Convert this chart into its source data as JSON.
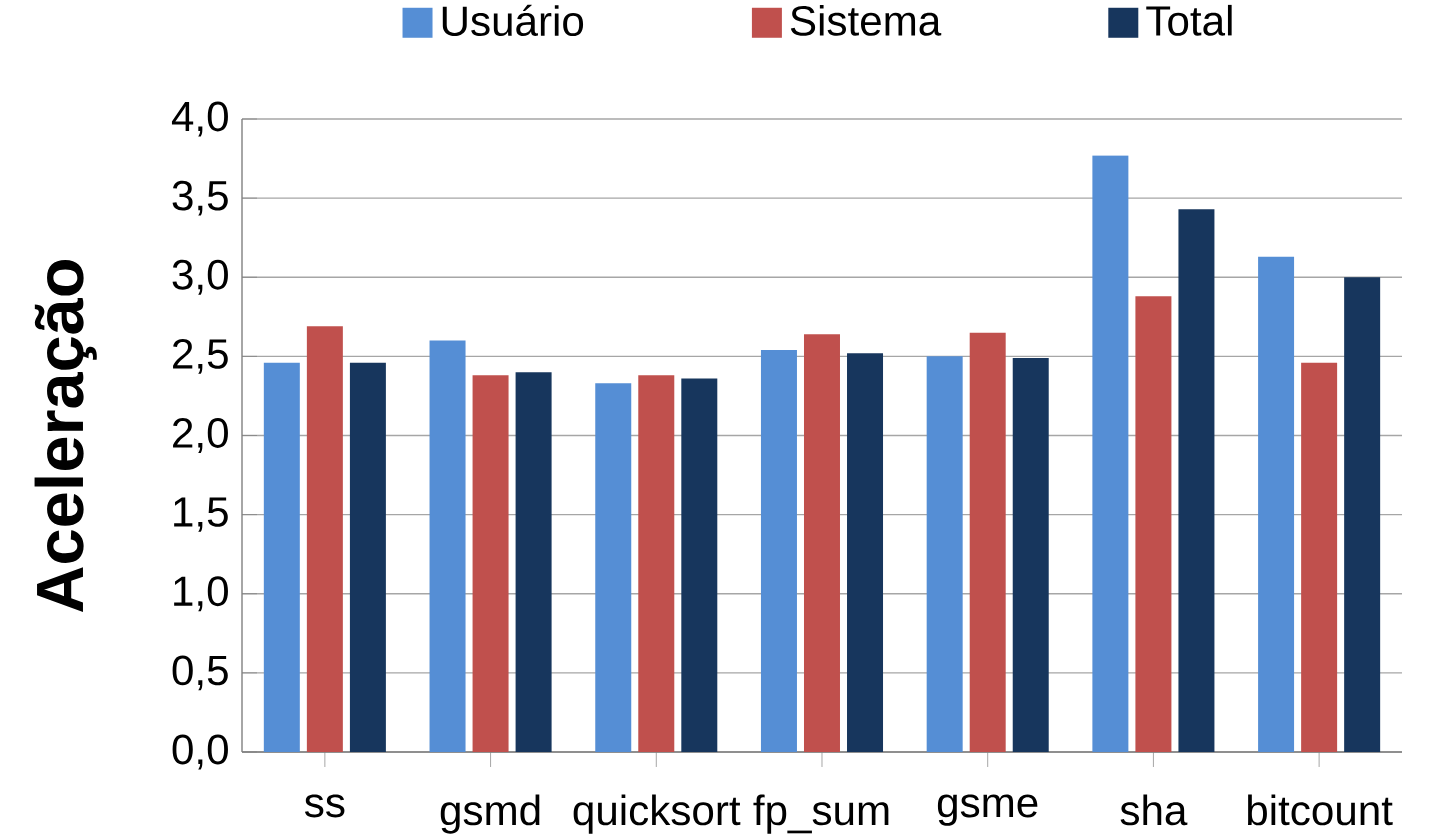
{
  "chart_data": {
    "type": "bar",
    "ylabel": "Aceleração",
    "categories": [
      "ss",
      "gsmd",
      "quicksort",
      "fp_sum",
      "gsme",
      "sha",
      "bitcount"
    ],
    "series": [
      {
        "name": "Usuário",
        "color": "#558ed5",
        "values": [
          2.46,
          2.6,
          2.33,
          2.54,
          2.5,
          3.77,
          3.13
        ]
      },
      {
        "name": "Sistema",
        "color": "#c0504d",
        "values": [
          2.69,
          2.38,
          2.38,
          2.64,
          2.65,
          2.88,
          2.46
        ]
      },
      {
        "name": "Total",
        "color": "#17365d",
        "values": [
          2.46,
          2.4,
          2.36,
          2.52,
          2.49,
          3.43,
          3.0
        ]
      }
    ],
    "ylim": [
      0,
      4
    ],
    "yticks": [
      {
        "value": 0,
        "label": "0,0"
      },
      {
        "value": 0.5,
        "label": "0,5"
      },
      {
        "value": 1,
        "label": "1,0"
      },
      {
        "value": 1.5,
        "label": "1,5"
      },
      {
        "value": 2,
        "label": "2,0"
      },
      {
        "value": 2.5,
        "label": "2,5"
      },
      {
        "value": 3,
        "label": "3,0"
      },
      {
        "value": 3.5,
        "label": "3,5"
      },
      {
        "value": 4,
        "label": "4,0"
      }
    ],
    "grid": "y",
    "legend": "top"
  }
}
